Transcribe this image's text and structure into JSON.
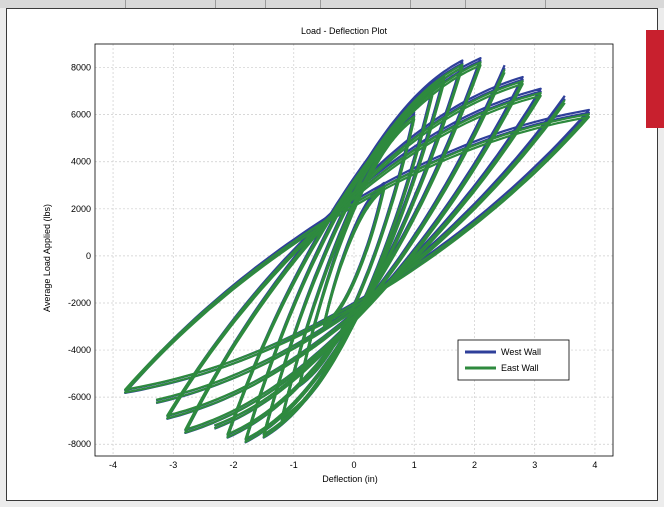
{
  "colors": {
    "west_wall": "#2f3f9a",
    "east_wall": "#2e8a3e",
    "grid": "#cccccc",
    "accent_tab": "#c8202e"
  },
  "chart_data": {
    "type": "line",
    "title": "Load - Deflection Plot",
    "xlabel": "Deflection (in)",
    "ylabel": "Average Load Applied (lbs)",
    "xlim": [
      -4.3,
      4.3
    ],
    "ylim": [
      -8500,
      9000
    ],
    "xticks": [
      -4,
      -3,
      -2,
      -1,
      0,
      1,
      2,
      3,
      4
    ],
    "yticks": [
      -8000,
      -6000,
      -4000,
      -2000,
      0,
      2000,
      4000,
      6000,
      8000
    ],
    "grid": true,
    "legend_position": "lower-right",
    "description_note": "",
    "series": [
      {
        "name": "West Wall",
        "cycles": [
          {
            "xmax": 0.5,
            "ymax": 3000,
            "xmin": -0.5,
            "ymin": -3000
          },
          {
            "xmax": 1.0,
            "ymax": 6000,
            "xmin": -0.9,
            "ymin": -5500
          },
          {
            "xmax": 1.3,
            "ymax": 7000,
            "xmin": -1.2,
            "ymin": -7000
          },
          {
            "xmax": 1.5,
            "ymax": 7600,
            "xmin": -1.5,
            "ymin": -7700
          },
          {
            "xmax": 1.8,
            "ymax": 8200,
            "xmin": -1.8,
            "ymin": -7900
          },
          {
            "xmax": 2.1,
            "ymax": 8300,
            "xmin": -2.1,
            "ymin": -7700
          },
          {
            "xmax": 2.5,
            "ymax": 8000,
            "xmin": -2.4,
            "ymin": -7400
          },
          {
            "xmax": 2.8,
            "ymax": 7500,
            "xmin": -2.8,
            "ymin": -7500
          },
          {
            "xmax": 3.1,
            "ymax": 7000,
            "xmin": -3.1,
            "ymin": -6900
          },
          {
            "xmax": 3.5,
            "ymax": 6700,
            "xmin": -3.4,
            "ymin": -6300
          },
          {
            "xmax": 3.9,
            "ymax": 6100,
            "xmin": -3.8,
            "ymin": -5800
          }
        ]
      },
      {
        "name": "East Wall",
        "cycles": [
          {
            "xmax": 0.5,
            "ymax": 2900,
            "xmin": -0.5,
            "ymin": -2900
          },
          {
            "xmax": 1.0,
            "ymax": 5900,
            "xmin": -0.9,
            "ymin": -5400
          },
          {
            "xmax": 1.3,
            "ymax": 6900,
            "xmin": -1.2,
            "ymin": -6900
          },
          {
            "xmax": 1.5,
            "ymax": 7500,
            "xmin": -1.5,
            "ymin": -7600
          },
          {
            "xmax": 1.8,
            "ymax": 8100,
            "xmin": -1.8,
            "ymin": -7800
          },
          {
            "xmax": 2.1,
            "ymax": 8200,
            "xmin": -2.1,
            "ymin": -7600
          },
          {
            "xmax": 2.5,
            "ymax": 7900,
            "xmin": -2.4,
            "ymin": -7300
          },
          {
            "xmax": 2.8,
            "ymax": 7400,
            "xmin": -2.8,
            "ymin": -7400
          },
          {
            "xmax": 3.1,
            "ymax": 6900,
            "xmin": -3.1,
            "ymin": -6800
          },
          {
            "xmax": 3.5,
            "ymax": 6600,
            "xmin": -3.4,
            "ymin": -6200
          },
          {
            "xmax": 3.9,
            "ymax": 6000,
            "xmin": -3.8,
            "ymin": -5700
          }
        ]
      }
    ]
  }
}
